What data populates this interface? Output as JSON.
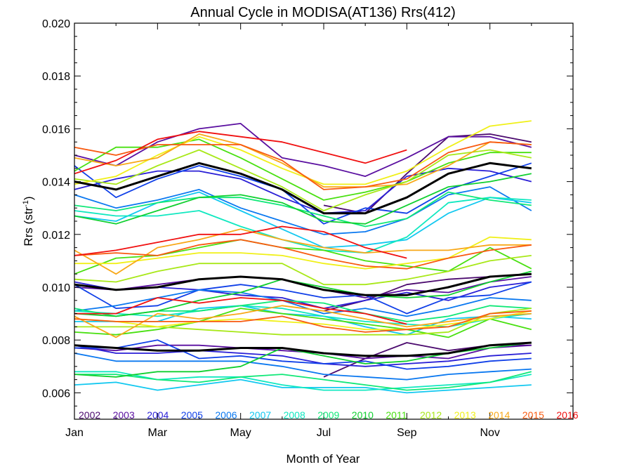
{
  "chart_data": {
    "type": "line",
    "title": "Annual Cycle in MODISA(AT136) Rrs(412)",
    "xlabel": "Month of Year",
    "ylabel_main": "Rrs (str",
    "ylabel_sup": "-1",
    "ylabel_close": ")",
    "xlim": [
      1,
      13
    ],
    "ylim": [
      0.005,
      0.02
    ],
    "x_ticks": [
      {
        "value": 1,
        "label": "Jan"
      },
      {
        "value": 3,
        "label": "Mar"
      },
      {
        "value": 5,
        "label": "May"
      },
      {
        "value": 7,
        "label": "Jul"
      },
      {
        "value": 9,
        "label": "Sep"
      },
      {
        "value": 11,
        "label": "Nov"
      }
    ],
    "y_ticks": [
      {
        "value": 0.006,
        "label": "0.006"
      },
      {
        "value": 0.008,
        "label": "0.008"
      },
      {
        "value": 0.01,
        "label": "0.010"
      },
      {
        "value": 0.012,
        "label": "0.012"
      },
      {
        "value": 0.014,
        "label": "0.014"
      },
      {
        "value": 0.016,
        "label": "0.016"
      },
      {
        "value": 0.018,
        "label": "0.018"
      },
      {
        "value": 0.02,
        "label": "0.020"
      }
    ],
    "grid": false,
    "legend_position": "bottom",
    "x": [
      1,
      2,
      3,
      4,
      5,
      6,
      7,
      8,
      9,
      10,
      11,
      12
    ],
    "series": [
      {
        "name": "2002",
        "color": "#4b0a6e",
        "values": [
          [
            null,
            null,
            null,
            null,
            null,
            null,
            0.0131,
            0.0128,
            0.0143,
            0.0157,
            0.0158,
            0.0155
          ],
          [
            null,
            null,
            null,
            null,
            null,
            null,
            0.0091,
            0.0095,
            0.0101,
            0.0103,
            0.0104,
            0.0105
          ],
          [
            null,
            null,
            null,
            null,
            null,
            null,
            0.0066,
            0.0073,
            0.0079,
            0.0076,
            0.0078,
            0.0078
          ]
        ]
      },
      {
        "name": "2003",
        "color": "#5a0fa0",
        "values": [
          [
            0.015,
            0.0146,
            0.0155,
            0.016,
            0.0162,
            0.0149,
            0.0146,
            0.0142,
            0.0149,
            0.0157,
            0.0157,
            0.0153
          ],
          [
            0.01,
            0.0099,
            0.0101,
            0.0103,
            0.0104,
            0.0103,
            0.0099,
            0.0096,
            0.0099,
            0.0098,
            0.0102,
            0.0104
          ],
          [
            0.0077,
            0.0076,
            0.0078,
            0.0078,
            0.0077,
            0.0076,
            0.0075,
            0.0073,
            0.0074,
            0.0073,
            0.0077,
            0.0078
          ]
        ]
      },
      {
        "name": "2004",
        "color": "#2a1fd6",
        "values": [
          [
            0.0137,
            0.0141,
            0.0144,
            0.0144,
            0.0141,
            0.0134,
            0.0128,
            0.0129,
            0.0142,
            0.0145,
            0.0144,
            0.014
          ],
          [
            0.0102,
            0.0099,
            0.01,
            0.0099,
            0.0097,
            0.0096,
            0.0092,
            0.0095,
            0.0098,
            0.0095,
            0.01,
            0.0102
          ],
          [
            0.0078,
            0.0075,
            0.0075,
            0.0076,
            0.0075,
            0.0074,
            0.0071,
            0.007,
            0.0071,
            0.0072,
            0.0074,
            0.0075
          ]
        ]
      },
      {
        "name": "2005",
        "color": "#1040e8",
        "values": [
          [
            0.0146,
            0.0134,
            0.0141,
            0.0146,
            0.0142,
            0.0137,
            0.0124,
            0.013,
            0.0128,
            0.0137,
            0.0142,
            0.0147
          ],
          [
            0.0101,
            0.0092,
            0.0093,
            0.0099,
            0.0101,
            0.0099,
            0.0096,
            0.0097,
            0.009,
            0.0096,
            0.0097,
            0.0102
          ],
          [
            0.0077,
            0.0077,
            0.008,
            0.0073,
            0.0074,
            0.0072,
            0.0071,
            0.0072,
            0.0069,
            0.007,
            0.0072,
            0.0073
          ]
        ]
      },
      {
        "name": "2006",
        "color": "#0a78f0",
        "values": [
          [
            0.0135,
            0.013,
            0.0133,
            0.0137,
            0.013,
            0.0125,
            0.012,
            0.0121,
            0.0126,
            0.0135,
            0.0138,
            0.0129
          ],
          [
            0.0091,
            0.0093,
            0.0096,
            0.0099,
            0.0098,
            0.0095,
            0.009,
            0.0092,
            0.0089,
            0.0092,
            0.0096,
            0.0095
          ],
          [
            0.0075,
            0.0072,
            0.0072,
            0.0072,
            0.0072,
            0.007,
            0.0067,
            0.0066,
            0.0065,
            0.0067,
            0.0068,
            0.0069
          ]
        ]
      },
      {
        "name": "2007",
        "color": "#12c8f0",
        "values": [
          [
            0.0127,
            0.0125,
            0.0132,
            0.0136,
            0.0129,
            0.0122,
            0.0115,
            0.0116,
            0.0118,
            0.0128,
            0.0134,
            0.0132
          ],
          [
            0.0087,
            0.0087,
            0.0087,
            0.0092,
            0.0093,
            0.009,
            0.0089,
            0.0085,
            0.0082,
            0.0088,
            0.0089,
            0.0088
          ],
          [
            0.0063,
            0.0064,
            0.0061,
            0.0063,
            0.0065,
            0.0062,
            0.0062,
            0.0062,
            0.006,
            0.0061,
            0.0062,
            0.0063
          ]
        ]
      },
      {
        "name": "2008",
        "color": "#10e8c0",
        "values": [
          [
            0.0129,
            0.0127,
            0.0127,
            0.0129,
            0.0123,
            0.0118,
            0.0114,
            0.0113,
            0.0119,
            0.0132,
            0.0134,
            0.0133
          ],
          [
            0.0091,
            0.009,
            0.0089,
            0.0091,
            0.0093,
            0.0092,
            0.0089,
            0.0087,
            0.0086,
            0.0085,
            0.0088,
            0.009
          ],
          [
            0.0068,
            0.0068,
            0.0065,
            0.0066,
            0.0066,
            0.0063,
            0.0061,
            0.0061,
            0.0062,
            0.0063,
            0.0064,
            0.0067
          ]
        ]
      },
      {
        "name": "2009",
        "color": "#10e878",
        "values": [
          [
            0.0131,
            0.0129,
            0.0132,
            0.0134,
            0.0134,
            0.0131,
            0.0127,
            0.0123,
            0.0126,
            0.0136,
            0.0133,
            0.0131
          ],
          [
            0.0092,
            0.0089,
            0.0091,
            0.0091,
            0.0093,
            0.0095,
            0.0094,
            0.009,
            0.0087,
            0.0089,
            0.0093,
            0.0092
          ],
          [
            0.0067,
            0.0067,
            0.0065,
            0.0064,
            0.0066,
            0.0067,
            0.0065,
            0.0063,
            0.0061,
            0.0062,
            0.0064,
            0.0068
          ]
        ]
      },
      {
        "name": "2010",
        "color": "#10d030",
        "values": [
          [
            0.0127,
            0.0124,
            0.0129,
            0.0134,
            0.0135,
            0.0132,
            0.0125,
            0.0124,
            0.0131,
            0.0138,
            0.014,
            0.0143
          ],
          [
            0.009,
            0.0089,
            0.0091,
            0.0095,
            0.0098,
            0.0103,
            0.01,
            0.0097,
            0.0096,
            0.0097,
            0.0102,
            0.0106
          ],
          [
            0.0067,
            0.0066,
            0.0068,
            0.0068,
            0.007,
            0.0077,
            0.0074,
            0.0071,
            0.0072,
            0.0075,
            0.0077,
            0.0079
          ]
        ]
      },
      {
        "name": "2011",
        "color": "#48e010",
        "values": [
          [
            0.0144,
            0.0153,
            0.0153,
            0.0156,
            0.0149,
            0.0141,
            0.0133,
            0.0136,
            0.014,
            0.0147,
            0.0151,
            0.0151
          ],
          [
            0.0105,
            0.0111,
            0.0112,
            0.0115,
            0.0118,
            0.0115,
            0.0114,
            0.011,
            0.0108,
            0.0106,
            0.0115,
            0.0107
          ],
          [
            0.0083,
            0.0082,
            0.0084,
            0.0087,
            0.0092,
            0.009,
            0.0088,
            0.0086,
            0.0084,
            0.0081,
            0.0088,
            0.0084
          ]
        ]
      },
      {
        "name": "2012",
        "color": "#a8e818",
        "values": [
          [
            0.0141,
            0.0139,
            0.0146,
            0.0152,
            0.0145,
            0.0138,
            0.0129,
            0.0135,
            0.014,
            0.015,
            0.0152,
            0.0149
          ],
          [
            0.0103,
            0.0102,
            0.0106,
            0.0109,
            0.0109,
            0.0109,
            0.0101,
            0.0101,
            0.0103,
            0.0106,
            0.011,
            0.0112
          ],
          [
            0.0085,
            0.0085,
            0.0085,
            0.0084,
            0.0083,
            0.0082,
            0.0082,
            0.0082,
            0.0082,
            0.0083,
            0.009,
            0.0092
          ]
        ]
      },
      {
        "name": "2013",
        "color": "#f0f018",
        "values": [
          [
            0.0139,
            0.0142,
            0.015,
            0.0157,
            0.0152,
            0.0145,
            0.0139,
            0.0139,
            0.0144,
            0.0153,
            0.0161,
            0.0163
          ],
          [
            0.0109,
            0.0109,
            0.0111,
            0.0113,
            0.0113,
            0.0112,
            0.0109,
            0.0107,
            0.0109,
            0.0111,
            0.0119,
            0.0118
          ],
          [
            0.0088,
            0.0087,
            0.0085,
            0.0087,
            0.0088,
            0.0087,
            0.0086,
            0.0084,
            0.0084,
            0.0086,
            0.0088,
            0.0091
          ]
        ]
      },
      {
        "name": "2014",
        "color": "#f8a818",
        "values": [
          [
            0.0149,
            0.0146,
            0.0149,
            0.0158,
            0.0154,
            0.0147,
            0.0138,
            0.0138,
            0.0139,
            0.0146,
            0.0155,
            0.0154
          ],
          [
            0.0114,
            0.0105,
            0.0115,
            0.0118,
            0.0122,
            0.0118,
            0.0115,
            0.0113,
            0.0114,
            0.0114,
            0.0116,
            0.0116
          ],
          [
            0.0089,
            0.0081,
            0.009,
            0.0088,
            0.009,
            0.0093,
            0.0091,
            0.0088,
            0.0085,
            0.0087,
            0.0089,
            0.009
          ]
        ]
      },
      {
        "name": "2015",
        "color": "#f85a10",
        "values": [
          [
            0.0153,
            0.015,
            0.0154,
            0.0154,
            0.0154,
            0.0148,
            0.0137,
            0.0138,
            0.0141,
            0.0151,
            0.0155,
            0.0154
          ],
          [
            0.0112,
            0.0113,
            0.0112,
            0.0116,
            0.0118,
            0.0115,
            0.0111,
            0.0108,
            0.0107,
            0.0111,
            0.0114,
            0.0116
          ],
          [
            0.0088,
            0.0087,
            0.0087,
            0.0087,
            0.0087,
            0.0089,
            0.0085,
            0.0083,
            0.0084,
            0.0085,
            0.009,
            0.0091
          ]
        ]
      },
      {
        "name": "2016",
        "color": "#f01010",
        "values": [
          [
            0.0143,
            0.0148,
            0.0156,
            0.0159,
            0.0157,
            0.0155,
            0.0151,
            0.0147,
            0.0152,
            null,
            null,
            null
          ],
          [
            0.0112,
            0.0114,
            0.0117,
            0.012,
            0.012,
            0.0123,
            0.0121,
            0.0115,
            0.0111,
            null,
            null,
            null
          ],
          [
            0.009,
            0.009,
            0.0096,
            0.0094,
            0.0096,
            0.0095,
            0.0092,
            0.009,
            0.0086,
            null,
            null,
            null
          ]
        ]
      }
    ],
    "mean_lines": {
      "color": "#000000",
      "values": [
        [
          0.014,
          0.0137,
          0.0142,
          0.0147,
          0.0143,
          0.0137,
          0.0128,
          0.0128,
          0.0134,
          0.0143,
          0.0147,
          0.0145
        ],
        [
          0.0101,
          0.0099,
          0.01,
          0.0103,
          0.0104,
          0.0103,
          0.0099,
          0.0097,
          0.0097,
          0.01,
          0.0104,
          0.0105
        ],
        [
          0.0078,
          0.0077,
          0.0076,
          0.0076,
          0.0077,
          0.0077,
          0.0075,
          0.0074,
          0.0074,
          0.0075,
          0.0078,
          0.0079
        ]
      ]
    }
  }
}
